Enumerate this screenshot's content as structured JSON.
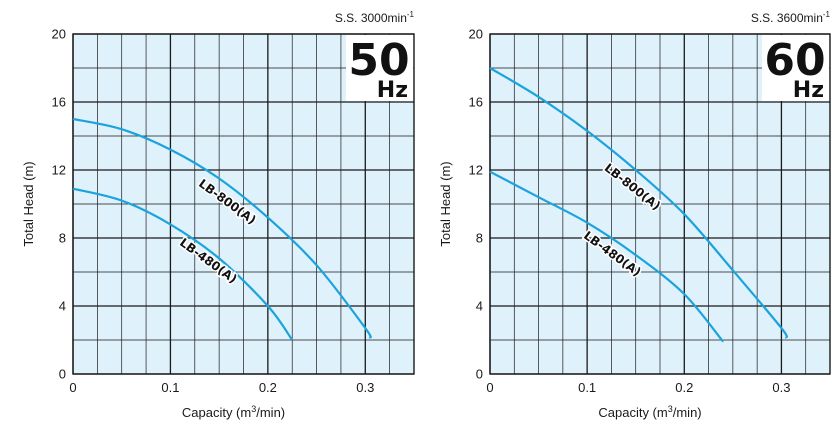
{
  "chart_data": [
    {
      "type": "line",
      "speed_label": "S.S. 3000min",
      "speed_sup": "-1",
      "badge_number": "50",
      "badge_unit": "Hz",
      "xlabel": "Capacity (m",
      "xlabel_sup": "3",
      "xlabel_tail": "/min)",
      "ylabel": "Total Head (m)",
      "xlim": [
        0,
        0.35
      ],
      "ylim": [
        0,
        20
      ],
      "xticks": [
        "0",
        "0.1",
        "0.2",
        "0.3"
      ],
      "xtick_values": [
        0,
        0.1,
        0.2,
        0.3
      ],
      "yticks": [
        "0",
        "4",
        "8",
        "12",
        "16",
        "20"
      ],
      "ytick_values": [
        0,
        4,
        8,
        12,
        16,
        20
      ],
      "grid": true,
      "series": [
        {
          "name": "LB-800(A)",
          "x": [
            0,
            0.05,
            0.1,
            0.15,
            0.2,
            0.25,
            0.3,
            0.305
          ],
          "y": [
            15.0,
            14.4,
            13.2,
            11.5,
            9.2,
            6.4,
            2.7,
            2.1
          ]
        },
        {
          "name": "LB-480(A)",
          "x": [
            0,
            0.05,
            0.1,
            0.15,
            0.2,
            0.225
          ],
          "y": [
            10.9,
            10.2,
            8.8,
            6.8,
            4.0,
            2.0
          ]
        }
      ]
    },
    {
      "type": "line",
      "speed_label": "S.S. 3600min",
      "speed_sup": "-1",
      "badge_number": "60",
      "badge_unit": "Hz",
      "xlabel": "Capacity (m",
      "xlabel_sup": "3",
      "xlabel_tail": "/min)",
      "ylabel": "Total Head (m)",
      "xlim": [
        0,
        0.35
      ],
      "ylim": [
        0,
        20
      ],
      "xticks": [
        "0",
        "0.1",
        "0.2",
        "0.3"
      ],
      "xtick_values": [
        0,
        0.1,
        0.2,
        0.3
      ],
      "yticks": [
        "0",
        "4",
        "8",
        "12",
        "16",
        "20"
      ],
      "ytick_values": [
        0,
        4,
        8,
        12,
        16,
        20
      ],
      "grid": true,
      "series": [
        {
          "name": "LB-800(A)",
          "x": [
            0,
            0.05,
            0.1,
            0.15,
            0.2,
            0.25,
            0.3,
            0.305
          ],
          "y": [
            18.0,
            16.3,
            14.3,
            12.0,
            9.4,
            6.1,
            2.7,
            2.1
          ]
        },
        {
          "name": "LB-480(A)",
          "x": [
            0,
            0.05,
            0.1,
            0.15,
            0.2,
            0.24
          ],
          "y": [
            11.9,
            10.4,
            8.9,
            7.0,
            4.7,
            1.9
          ]
        }
      ]
    }
  ],
  "colors": {
    "plot_bg": "#dff1fb",
    "grid": "#1a1a1a",
    "curve": "#1ba3dd"
  }
}
